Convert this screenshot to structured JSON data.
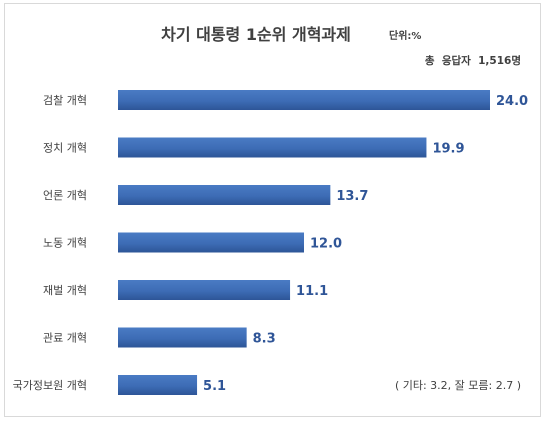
{
  "chart_data": {
    "type": "bar",
    "orientation": "horizontal",
    "title": "차기 대통령 1순위 개혁과제",
    "unit": "단위:%",
    "respondents": "총  응답자  1,516명",
    "categories": [
      "검찰 개혁",
      "정치 개혁",
      "언론 개혁",
      "노동 개혁",
      "재벌 개혁",
      "관료 개혁",
      "국가정보원 개혁"
    ],
    "values": [
      24.0,
      19.9,
      13.7,
      12.0,
      11.1,
      8.3,
      5.1
    ],
    "value_labels": [
      "24.0",
      "19.9",
      "13.7",
      "12.0",
      "11.1",
      "8.3",
      "5.1"
    ],
    "note": "( 기타: 3.2, 잘 모름: 2.7 )",
    "bar_color": "#3d6cb5",
    "bar_color_dark": "#2d5597",
    "value_label_color": "#2f5597",
    "grid": false,
    "legend": "none"
  }
}
